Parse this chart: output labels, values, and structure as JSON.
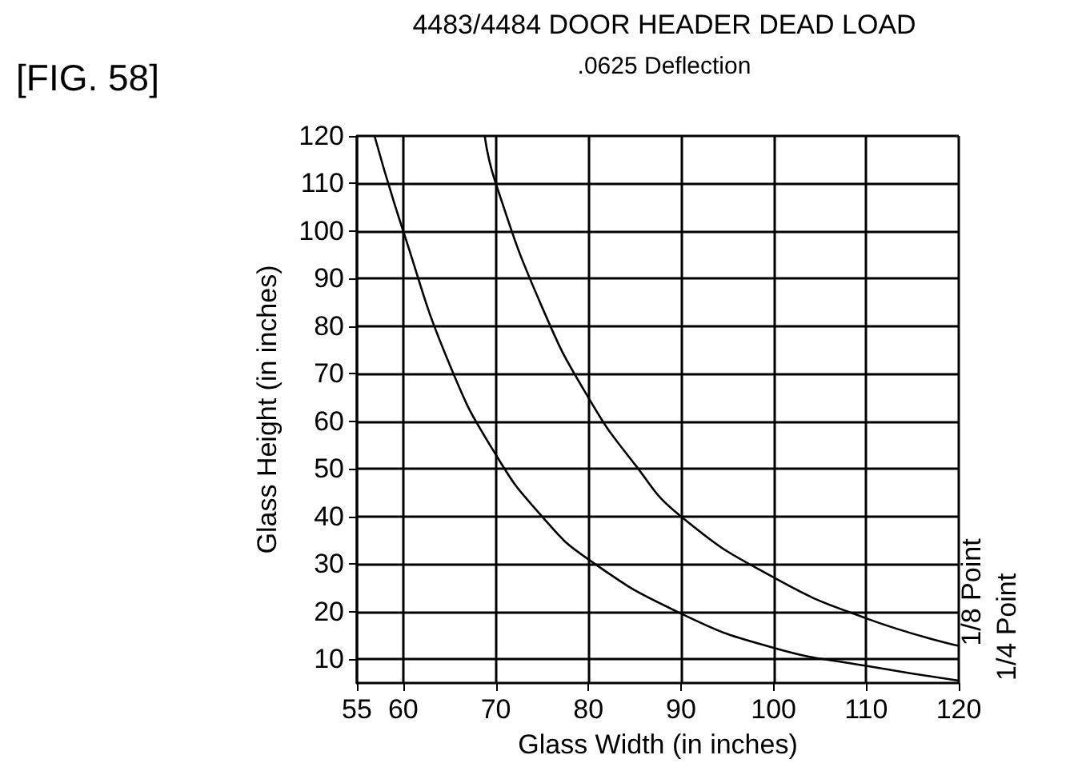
{
  "chart_data": {
    "type": "line",
    "title": "4483/4484 DOOR HEADER DEAD LOAD",
    "subtitle": ".0625 Deflection",
    "annotations": [
      "[FIG. 58]"
    ],
    "xlabel": "Glass Width (in inches)",
    "ylabel": "Glass Height (in inches)",
    "series": [
      {
        "name": "1/8 Point",
        "color": "#000000",
        "x": [
          68.8,
          70,
          75,
          80,
          85,
          90,
          100,
          110,
          120
        ],
        "values": [
          120,
          110,
          84,
          65,
          51,
          40,
          27.2,
          18.6,
          12.8
        ]
      },
      {
        "name": "1/4 Point",
        "color": "#000000",
        "x": [
          56.9,
          60,
          65,
          70,
          75,
          80,
          90,
          100,
          110,
          120
        ],
        "values": [
          120,
          100,
          72,
          53,
          40,
          31,
          19.6,
          12.4,
          8.6,
          5.5
        ]
      }
    ],
    "xlim": [
      55,
      120
    ],
    "xticks": [
      55,
      60,
      70,
      80,
      90,
      100,
      110,
      120
    ],
    "ylim": [
      5,
      120
    ],
    "yticks": [
      10,
      20,
      30,
      40,
      50,
      60,
      70,
      80,
      90,
      100,
      110,
      120
    ],
    "grid": true,
    "legend": false,
    "marker": "none",
    "line_style": "solid"
  }
}
